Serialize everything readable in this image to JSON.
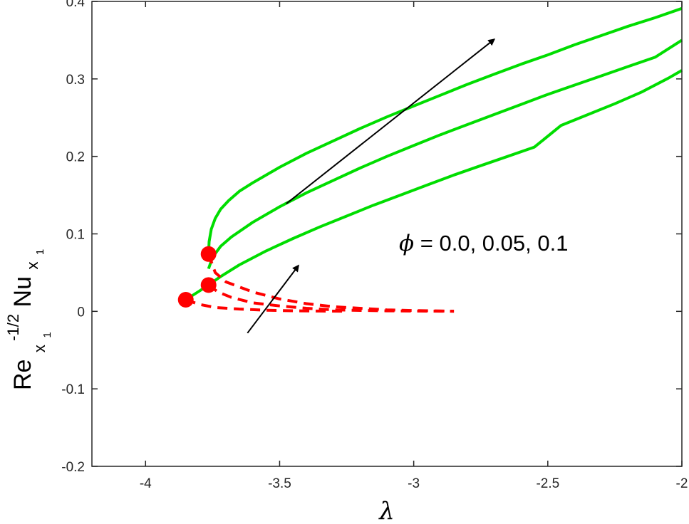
{
  "chart_data": {
    "type": "line",
    "title": "",
    "xlabel": "λ",
    "ylabel": {
      "base": "Re",
      "base_sub": "x",
      "base_sub_sub": "1",
      "base_sup": "-1/2",
      "main": "Nu",
      "main_sub": "x",
      "main_sub_sub": "1"
    },
    "xlim": [
      -4.2,
      -2
    ],
    "ylim": [
      -0.2,
      0.4
    ],
    "xticks": [
      -4,
      -3.5,
      -3,
      -2.5,
      -2
    ],
    "xtick_labels": [
      "-4",
      "-3.5",
      "-3",
      "-2.5",
      "-2"
    ],
    "yticks": [
      -0.2,
      -0.1,
      0,
      0.1,
      0.2,
      0.3,
      0.4
    ],
    "ytick_labels": [
      "-0.2",
      "-0.1",
      "0",
      "0.1",
      "0.2",
      "0.3",
      "0.4"
    ],
    "grid": false,
    "legend": "none",
    "colors": {
      "upper_branch": "#00dd00",
      "lower_branch": "#ff0000",
      "critical_point": "#ff0000",
      "arrow": "#000000"
    },
    "series": [
      {
        "branch": "upper",
        "style": "solid",
        "x": [
          -3.765,
          -3.763,
          -3.755,
          -3.74,
          -3.72,
          -3.69,
          -3.65,
          -3.6,
          -3.5,
          -3.4,
          -3.3,
          -3.2,
          -3.1,
          -3.0,
          -2.9,
          -2.8,
          -2.7,
          -2.6,
          -2.5,
          -2.4,
          -2.3,
          -2.2,
          -2.1,
          -2.0
        ],
        "y": [
          0.074,
          0.09,
          0.106,
          0.12,
          0.132,
          0.143,
          0.155,
          0.166,
          0.186,
          0.204,
          0.22,
          0.236,
          0.251,
          0.265,
          0.279,
          0.293,
          0.306,
          0.319,
          0.331,
          0.344,
          0.356,
          0.368,
          0.379,
          0.391
        ]
      },
      {
        "branch": "upper",
        "style": "solid",
        "x": [
          -3.765,
          -3.75,
          -3.72,
          -3.68,
          -3.6,
          -3.5,
          -3.4,
          -3.3,
          -3.2,
          -3.1,
          -3.0,
          -2.9,
          -2.8,
          -2.7,
          -2.6,
          -2.5,
          -2.4,
          -2.3,
          -2.2,
          -2.1,
          -2.0
        ],
        "y": [
          0.055,
          0.07,
          0.084,
          0.096,
          0.115,
          0.135,
          0.153,
          0.169,
          0.185,
          0.2,
          0.214,
          0.228,
          0.241,
          0.254,
          0.267,
          0.28,
          0.292,
          0.304,
          0.316,
          0.328,
          0.35
        ]
      },
      {
        "branch": "upper",
        "style": "solid",
        "x": [
          -3.85,
          -3.8,
          -3.765,
          -3.72,
          -3.65,
          -3.55,
          -3.45,
          -3.35,
          -3.25,
          -3.15,
          -3.05,
          -2.95,
          -2.85,
          -2.75,
          -2.65,
          -2.55,
          -2.45,
          -2.35,
          -2.25,
          -2.15,
          -2.05,
          -2.0
        ],
        "y": [
          0.015,
          0.026,
          0.034,
          0.045,
          0.06,
          0.078,
          0.094,
          0.109,
          0.123,
          0.137,
          0.15,
          0.163,
          0.176,
          0.188,
          0.2,
          0.212,
          0.24,
          0.254,
          0.268,
          0.283,
          0.301,
          0.311
        ]
      },
      {
        "branch": "lower",
        "style": "dashed",
        "x": [
          -3.765,
          -3.74,
          -3.7,
          -3.6,
          -3.5,
          -3.4,
          -3.3,
          -3.2,
          -3.1,
          -3.0,
          -2.9,
          -2.85
        ],
        "y": [
          0.074,
          0.05,
          0.038,
          0.025,
          0.016,
          0.01,
          0.006,
          0.004,
          0.002,
          0.001,
          0.0005,
          0.0003
        ]
      },
      {
        "branch": "lower",
        "style": "dashed",
        "x": [
          -3.765,
          -3.73,
          -3.68,
          -3.6,
          -3.5,
          -3.4,
          -3.3,
          -3.2,
          -3.1,
          -3.0,
          -2.9,
          -2.85
        ],
        "y": [
          0.034,
          0.025,
          0.018,
          0.011,
          0.007,
          0.004,
          0.002,
          0.0012,
          0.0007,
          0.0004,
          0.0002,
          0.0001
        ]
      },
      {
        "branch": "lower",
        "style": "dashed",
        "x": [
          -3.85,
          -3.8,
          -3.74,
          -3.65,
          -3.55,
          -3.45,
          -3.35,
          -3.25
        ],
        "y": [
          0.015,
          0.009,
          0.005,
          0.003,
          0.0015,
          0.0008,
          0.0004,
          0.0002
        ]
      }
    ],
    "critical_points": [
      {
        "x": -3.765,
        "y": 0.074
      },
      {
        "x": -3.765,
        "y": 0.034
      },
      {
        "x": -3.85,
        "y": 0.015
      }
    ],
    "annotations": [
      {
        "symbol": "ϕ",
        "text": " = 0.0, 0.05, 0.1"
      }
    ],
    "arrows": [
      {
        "from": [
          -3.475,
          0.139
        ],
        "to": [
          -2.7,
          0.351
        ]
      },
      {
        "from": [
          -3.62,
          -0.028
        ],
        "to": [
          -3.43,
          0.059
        ]
      }
    ]
  }
}
